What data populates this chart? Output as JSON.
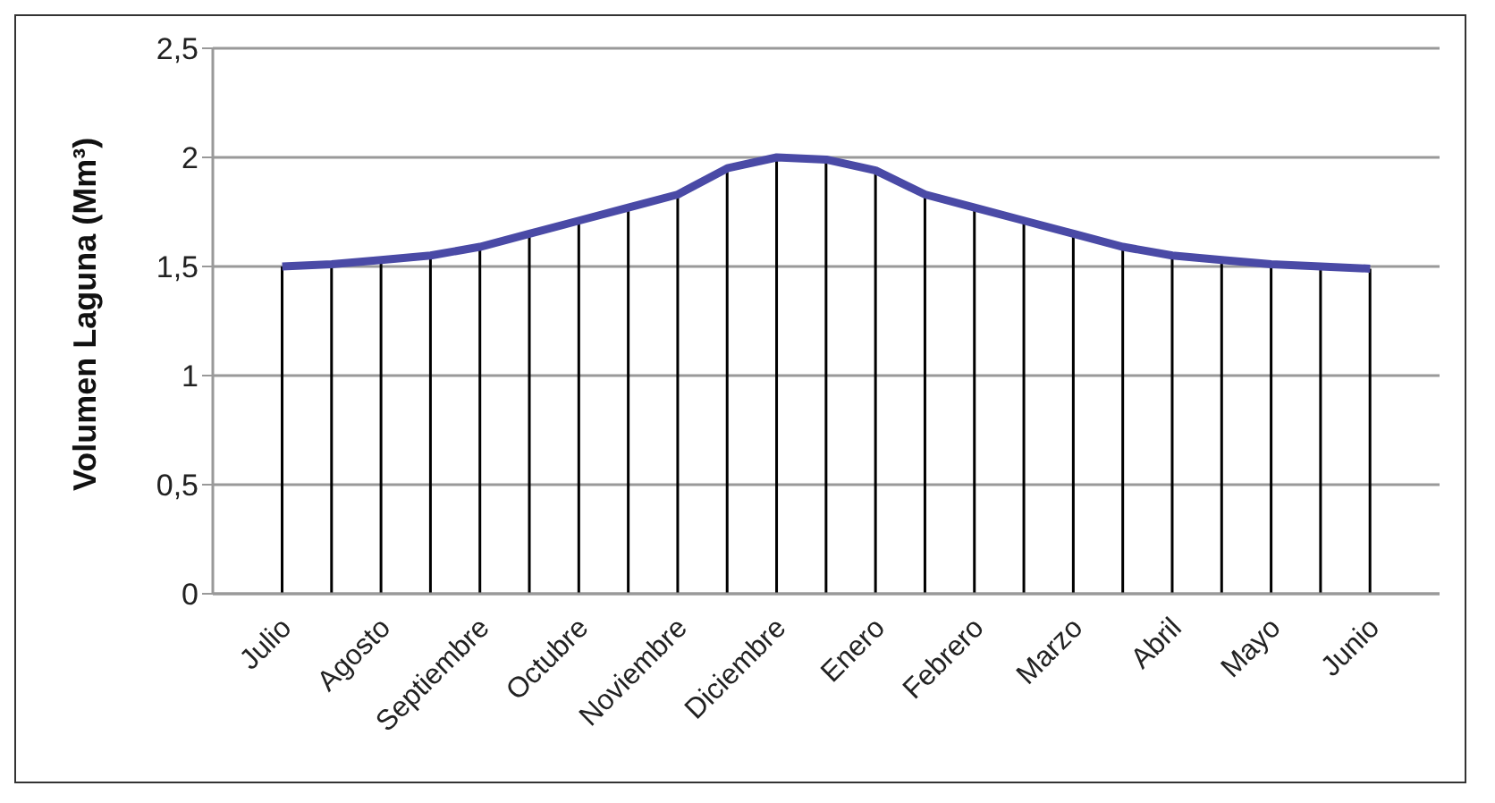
{
  "chart_data": {
    "type": "line",
    "ylabel": "Volumen Laguna (Mm³)",
    "categories": [
      "Julio",
      null,
      "Agosto",
      null,
      "Septiembre",
      null,
      "Octubre",
      null,
      "Noviembre",
      null,
      "Diciembre",
      null,
      "Enero",
      null,
      "Febrero",
      null,
      "Marzo",
      null,
      "Abril",
      null,
      "Mayo",
      null,
      "Junio"
    ],
    "series": [
      {
        "type": "bar",
        "color": "#000000",
        "values": [
          1.5,
          1.51,
          1.53,
          1.55,
          1.59,
          1.65,
          1.71,
          1.77,
          1.83,
          1.95,
          2.0,
          1.99,
          1.94,
          1.83,
          1.77,
          1.71,
          1.65,
          1.59,
          1.55,
          1.53,
          1.51,
          1.5,
          1.49
        ]
      },
      {
        "color": "#4a4aa6",
        "values": [
          1.5,
          1.51,
          1.53,
          1.55,
          1.59,
          1.65,
          1.71,
          1.77,
          1.83,
          1.95,
          2.0,
          1.99,
          1.94,
          1.83,
          1.77,
          1.71,
          1.65,
          1.59,
          1.55,
          1.53,
          1.51,
          1.5,
          1.49
        ]
      }
    ],
    "ylim": [
      0,
      2.5
    ],
    "yticks": [
      {
        "value": 0,
        "label": "0"
      },
      {
        "value": 0.5,
        "label": "0,5"
      },
      {
        "value": 1,
        "label": "1"
      },
      {
        "value": 1.5,
        "label": "1,5"
      },
      {
        "value": 2,
        "label": "2"
      },
      {
        "value": 2.5,
        "label": "2,5"
      }
    ],
    "grid": "y",
    "legend": false,
    "marker": "none",
    "line_style": "solid"
  }
}
